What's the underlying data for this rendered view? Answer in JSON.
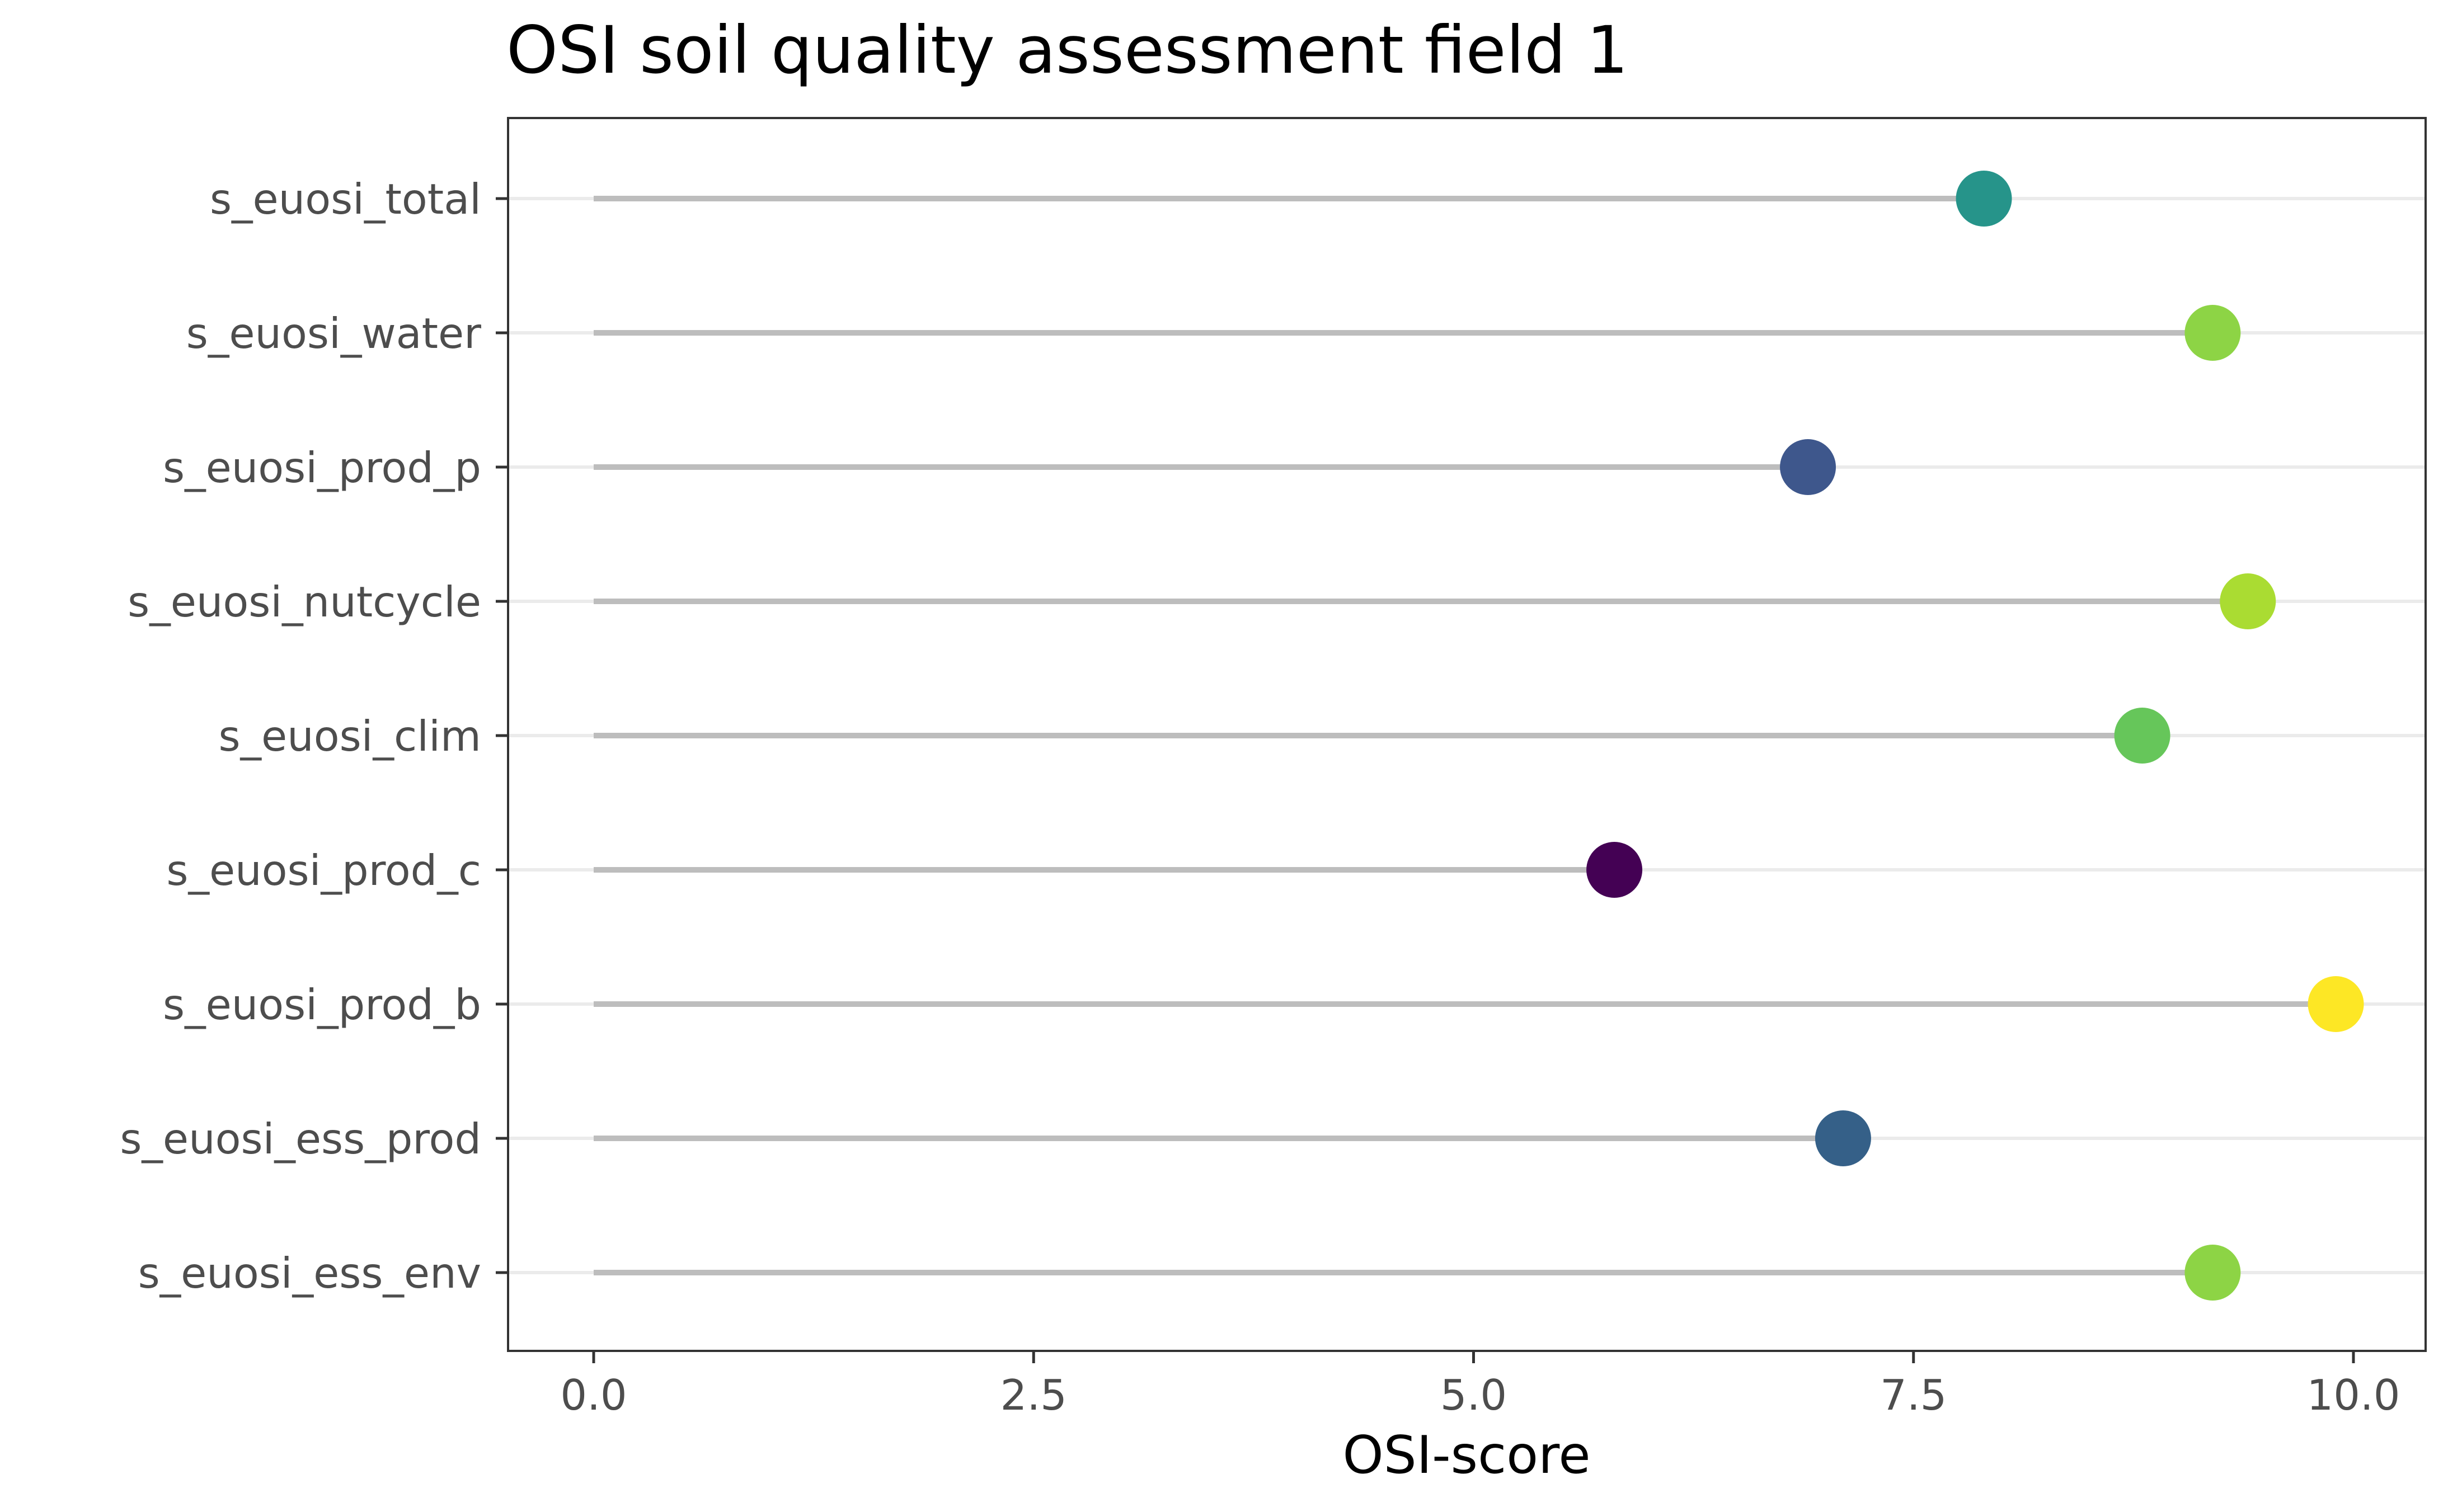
{
  "chart_data": {
    "type": "lollipop",
    "title": "OSI soil quality assessment field 1",
    "xlabel": "OSI-score",
    "ylabel": "",
    "xlim": [
      -0.2,
      10.2
    ],
    "x_ticks": [
      0,
      2.5,
      5,
      7.5,
      10
    ],
    "x_tick_labels": [
      "0.0",
      "2.5",
      "5.0",
      "7.5",
      "10.0"
    ],
    "grid": "horizontal-major",
    "legend": "none",
    "categories": [
      "s_euosi_total",
      "s_euosi_water",
      "s_euosi_prod_p",
      "s_euosi_nutcycle",
      "s_euosi_clim",
      "s_euosi_prod_c",
      "s_euosi_prod_b",
      "s_euosi_ess_prod",
      "s_euosi_ess_env"
    ],
    "values": [
      7.9,
      9.2,
      6.9,
      9.4,
      8.8,
      5.8,
      9.9,
      7.1,
      9.2
    ],
    "point_colors": [
      "#26948a",
      "#8dd445",
      "#3e578c",
      "#aadc32",
      "#66c65a",
      "#440154",
      "#fde725",
      "#356088",
      "#8dd445"
    ],
    "stem_color": "#bdbdbd",
    "gridline_color": "#ebebeb",
    "panel_border_color": "#333333"
  }
}
